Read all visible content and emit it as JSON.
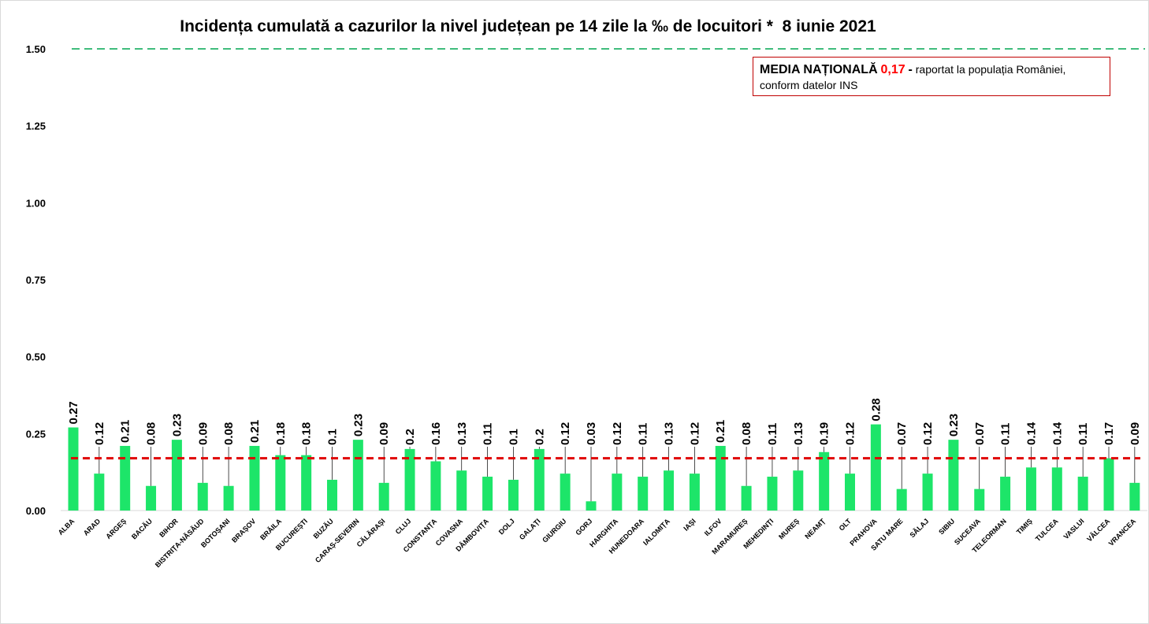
{
  "chart_data": {
    "type": "bar",
    "title": "Incidența cumulată a cazurilor la nivel județean pe 14 zile la ‰ de locuitori *  8 iunie 2021",
    "categories": [
      "ALBA",
      "ARAD",
      "ARGEȘ",
      "BACĂU",
      "BIHOR",
      "BISTRIȚA-NĂSĂUD",
      "BOTOȘANI",
      "BRAȘOV",
      "BRĂILA",
      "BUCUREȘTI",
      "BUZĂU",
      "CARAȘ-SEVERIN",
      "CĂLĂRAȘI",
      "CLUJ",
      "CONSTANȚA",
      "COVASNA",
      "DÂMBOVIȚA",
      "DOLJ",
      "GALAȚI",
      "GIURGIU",
      "GORJ",
      "HARGHITA",
      "HUNEDOARA",
      "IALOMIȚA",
      "IAȘI",
      "ILFOV",
      "MARAMUREȘ",
      "MEHEDINȚI",
      "MUREȘ",
      "NEAMȚ",
      "OLT",
      "PRAHOVA",
      "SATU MARE",
      "SĂLAJ",
      "SIBIU",
      "SUCEAVA",
      "TELEORMAN",
      "TIMIȘ",
      "TULCEA",
      "VASLUI",
      "VÂLCEA",
      "VRANCEA"
    ],
    "values": [
      0.27,
      0.12,
      0.21,
      0.08,
      0.23,
      0.09,
      0.08,
      0.21,
      0.18,
      0.18,
      0.1,
      0.23,
      0.09,
      0.2,
      0.16,
      0.13,
      0.11,
      0.1,
      0.2,
      0.12,
      0.03,
      0.12,
      0.11,
      0.13,
      0.12,
      0.21,
      0.08,
      0.11,
      0.13,
      0.19,
      0.12,
      0.28,
      0.07,
      0.12,
      0.23,
      0.07,
      0.11,
      0.14,
      0.14,
      0.11,
      0.17,
      0.09
    ],
    "data_labels": [
      "0.27",
      "0.12",
      "0.21",
      "0.08",
      "0.23",
      "0.09",
      "0.08",
      "0.21",
      "0.18",
      "0.18",
      "0.1",
      "0.23",
      "0.09",
      "0.2",
      "0.16",
      "0.13",
      "0.11",
      "0.1",
      "0.2",
      "0.12",
      "0.03",
      "0.12",
      "0.11",
      "0.13",
      "0.12",
      "0.21",
      "0.08",
      "0.11",
      "0.13",
      "0.19",
      "0.12",
      "0.28",
      "0.07",
      "0.12",
      "0.23",
      "0.07",
      "0.11",
      "0.14",
      "0.14",
      "0.11",
      "0.17",
      "0.09"
    ],
    "ylim": [
      0,
      1.5
    ],
    "yticks": [
      "0.00",
      "0.25",
      "0.50",
      "0.75",
      "1.00",
      "1.25",
      "1.50"
    ],
    "ytick_values": [
      0,
      0.25,
      0.5,
      0.75,
      1.0,
      1.25,
      1.5
    ],
    "reference_lines": [
      {
        "value": 1.5,
        "style": "dashed",
        "color": "#00a651"
      },
      {
        "value": 0.17,
        "style": "dashed",
        "color": "#e00000"
      }
    ],
    "grid": false,
    "bar_color": "#1de569"
  },
  "average_box": {
    "label": "MEDIA NAȚIONALĂ",
    "value": "0,17",
    "dash": "-",
    "text": "raportat la populația României,",
    "text2": "conform datelor INS",
    "border_color": "#c00000",
    "value_color": "#ff0000"
  }
}
